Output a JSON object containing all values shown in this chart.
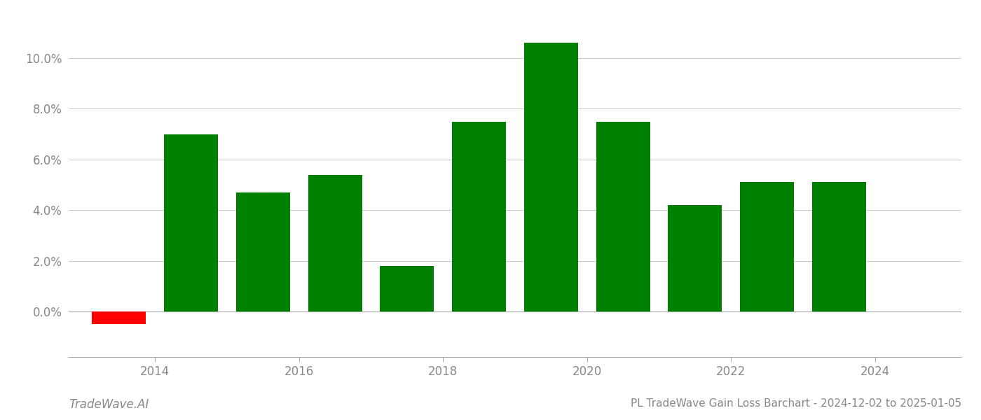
{
  "years": [
    2013.5,
    2014.5,
    2015.5,
    2016.5,
    2017.5,
    2018.5,
    2019.5,
    2020.5,
    2021.5,
    2022.5,
    2023.5
  ],
  "values": [
    -0.005,
    0.07,
    0.047,
    0.054,
    0.018,
    0.075,
    0.106,
    0.075,
    0.042,
    0.051,
    0.051
  ],
  "colors": [
    "#ff0000",
    "#008000",
    "#008000",
    "#008000",
    "#008000",
    "#008000",
    "#008000",
    "#008000",
    "#008000",
    "#008000",
    "#008000"
  ],
  "title": "PL TradeWave Gain Loss Barchart - 2024-12-02 to 2025-01-05",
  "watermark": "TradeWave.AI",
  "ylim_min": -0.018,
  "ylim_max": 0.118,
  "yticks": [
    0.0,
    0.02,
    0.04,
    0.06,
    0.08,
    0.1
  ],
  "xticks": [
    2014,
    2016,
    2018,
    2020,
    2022,
    2024
  ],
  "xlim_min": 2012.8,
  "xlim_max": 2025.2,
  "bar_width": 0.75,
  "background_color": "#ffffff",
  "grid_color": "#cccccc",
  "title_fontsize": 11,
  "tick_fontsize": 12,
  "watermark_fontsize": 12,
  "axis_label_color": "#888888"
}
